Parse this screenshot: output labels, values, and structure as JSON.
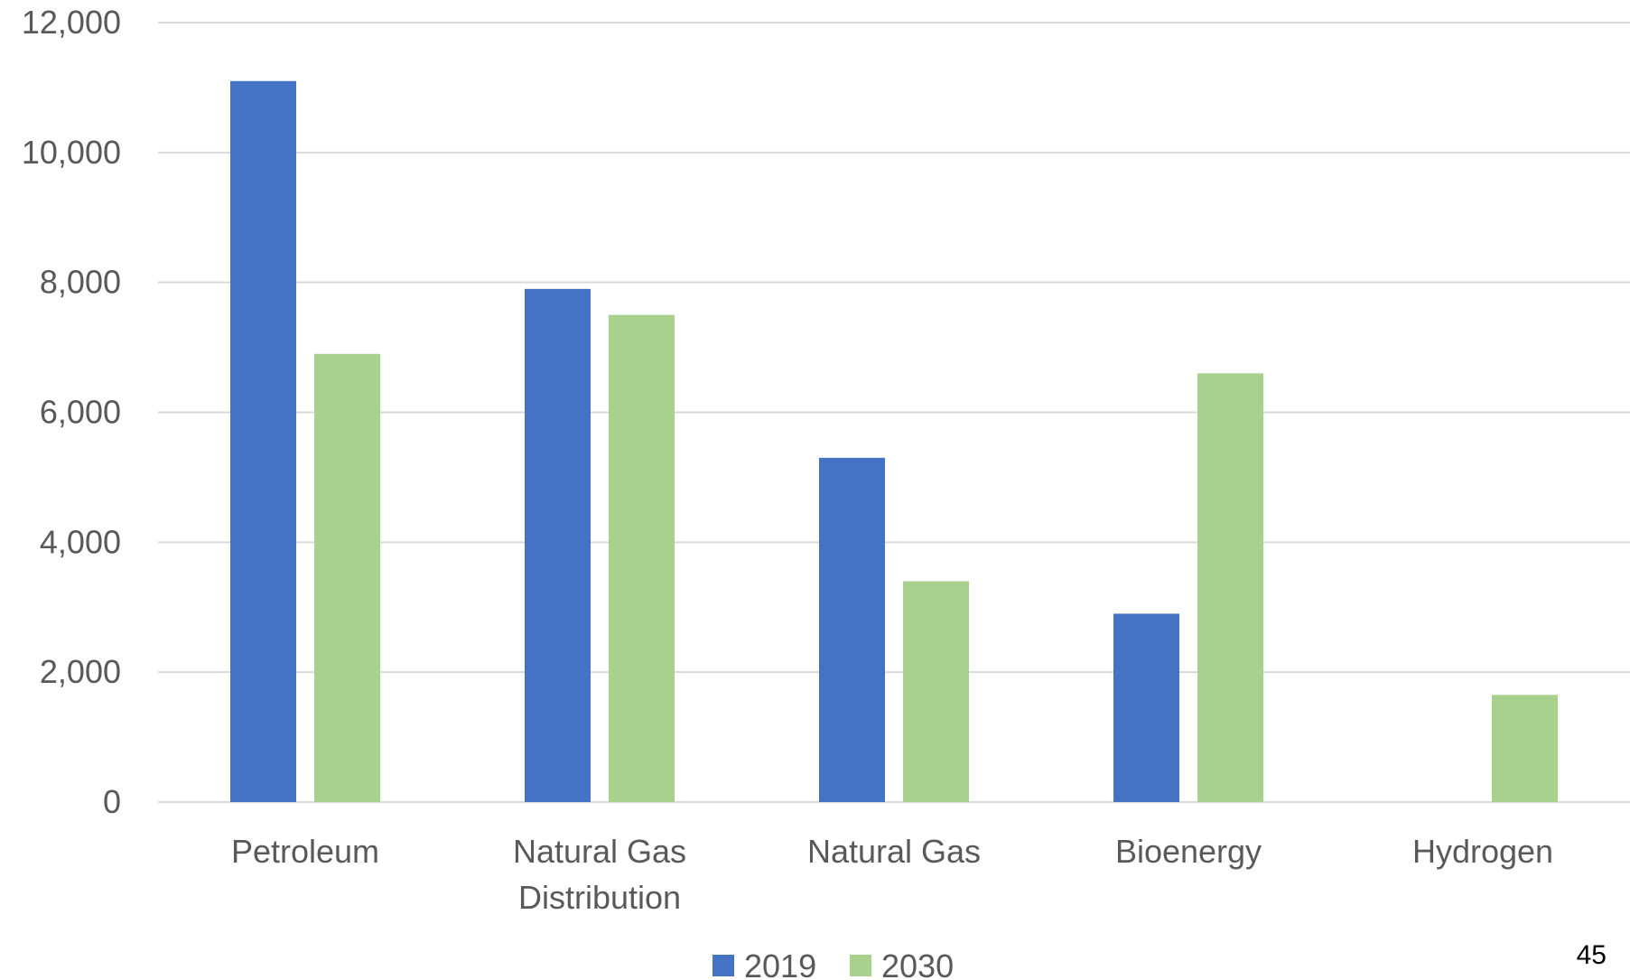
{
  "chart_data": {
    "type": "bar",
    "categories": [
      [
        "Petroleum"
      ],
      [
        "Natural Gas",
        "Distribution"
      ],
      [
        "Natural Gas"
      ],
      [
        "Bioenergy"
      ],
      [
        "Hydrogen"
      ]
    ],
    "series": [
      {
        "name": "2019",
        "values": [
          11100,
          7900,
          5300,
          2900,
          0
        ],
        "color": "#4472C4"
      },
      {
        "name": "2030",
        "values": [
          6900,
          7500,
          3400,
          6600,
          1650
        ],
        "color": "#A9D18E"
      }
    ],
    "title": "",
    "xlabel": "",
    "ylabel": "",
    "ylim": [
      0,
      12000
    ],
    "yticks": [
      0,
      2000,
      4000,
      6000,
      8000,
      10000,
      12000
    ],
    "ytick_labels": [
      "0",
      "2,000",
      "4,000",
      "6,000",
      "8,000",
      "10,000",
      "12,000"
    ],
    "grid": true,
    "legend_position": "bottom-center"
  },
  "page_number": "45"
}
